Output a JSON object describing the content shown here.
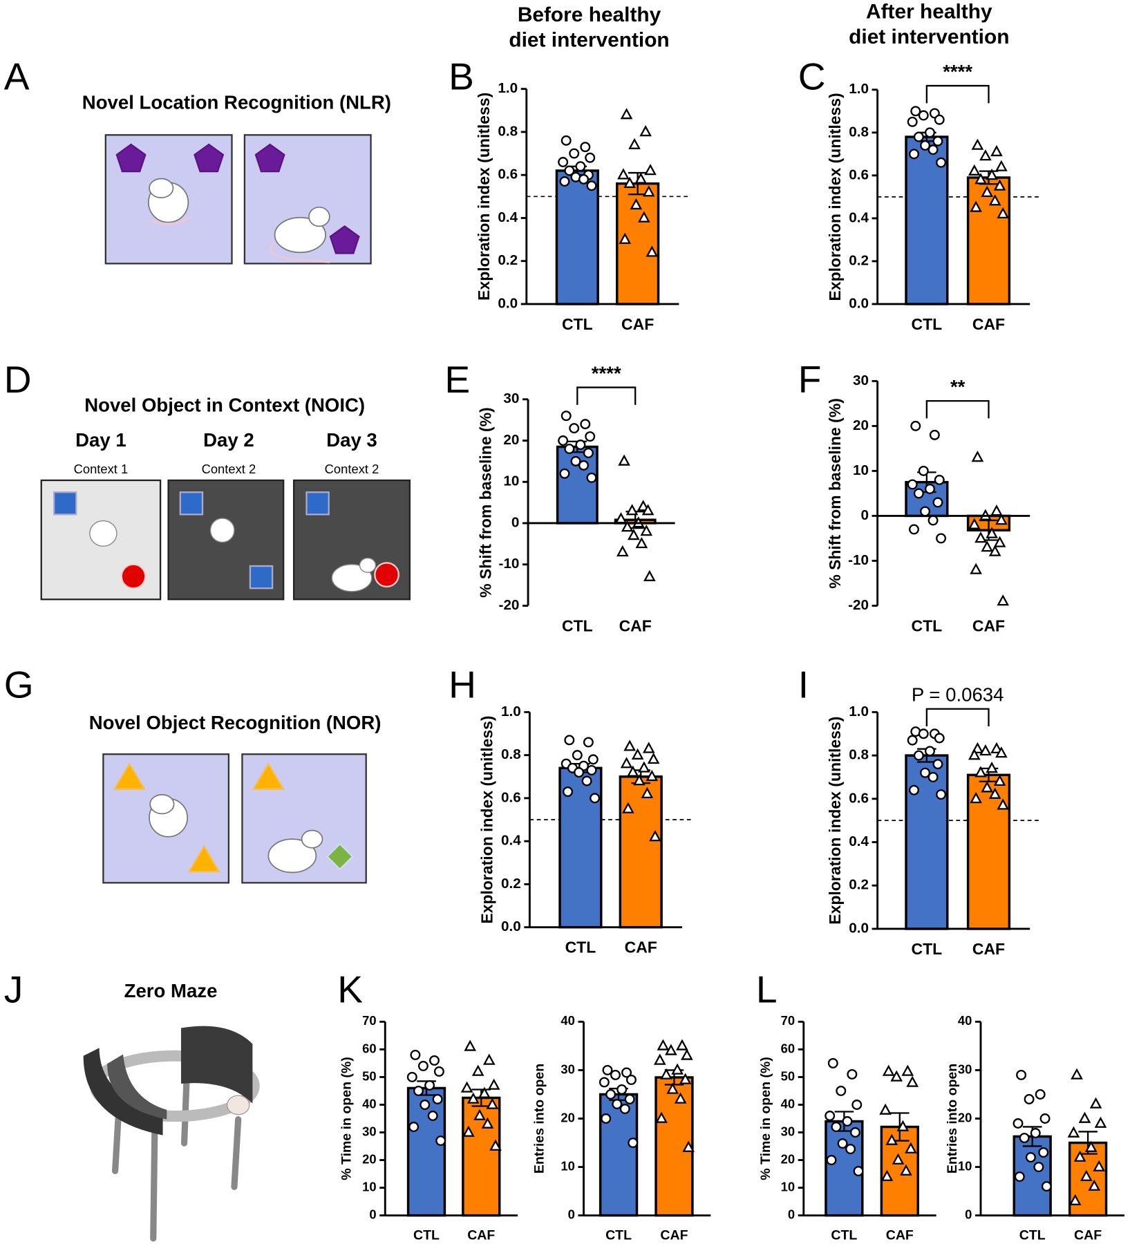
{
  "column_titles": [
    [
      "Before healthy",
      "diet intervention"
    ],
    [
      "After healthy",
      "diet intervention"
    ]
  ],
  "schematics": [
    {
      "panel": "A",
      "title": "Novel Location Recognition (NLR)"
    },
    {
      "panel": "D",
      "title": "Novel Object in Context (NOIC)",
      "days": [
        "Day 1",
        "Day 2",
        "Day 3"
      ],
      "contexts": [
        "Context 1",
        "Context 2",
        "Context 2"
      ]
    },
    {
      "panel": "G",
      "title": "Novel Object Recognition (NOR)"
    },
    {
      "panel": "J",
      "title": "Zero Maze"
    }
  ],
  "chart_data": [
    {
      "type": "bar",
      "panel": "B",
      "ylabel": "Exploration index (unitless)",
      "categories": [
        "CTL",
        "CAF"
      ],
      "values": [
        0.62,
        0.56
      ],
      "errors": [
        0.02,
        0.05
      ],
      "colors": [
        "#4472c4",
        "#ff8000"
      ],
      "markers": [
        "circle",
        "triangle"
      ],
      "points": [
        [
          0.76,
          0.73,
          0.7,
          0.68,
          0.66,
          0.64,
          0.62,
          0.6,
          0.59,
          0.58,
          0.57,
          0.55
        ],
        [
          0.88,
          0.8,
          0.74,
          0.62,
          0.6,
          0.58,
          0.56,
          0.52,
          0.46,
          0.4,
          0.3,
          0.24
        ]
      ],
      "ylim": [
        0,
        1
      ],
      "yticks": [
        {
          "value": 0,
          "label": "0.0"
        },
        {
          "value": 0.2,
          "label": "0.2"
        },
        {
          "value": 0.4,
          "label": "0.4"
        },
        {
          "value": 0.6,
          "label": "0.6"
        },
        {
          "value": 0.8,
          "label": "0.8"
        },
        {
          "value": 1,
          "label": "1.0"
        }
      ],
      "reference_line": 0.5
    },
    {
      "type": "bar",
      "panel": "C",
      "ylabel": "Exploration index (unitless)",
      "categories": [
        "CTL",
        "CAF"
      ],
      "values": [
        0.78,
        0.59
      ],
      "errors": [
        0.02,
        0.03
      ],
      "colors": [
        "#4472c4",
        "#ff8000"
      ],
      "markers": [
        "circle",
        "triangle"
      ],
      "points": [
        [
          0.9,
          0.89,
          0.88,
          0.86,
          0.85,
          0.8,
          0.78,
          0.76,
          0.74,
          0.72,
          0.7,
          0.66
        ],
        [
          0.74,
          0.71,
          0.69,
          0.64,
          0.62,
          0.6,
          0.58,
          0.55,
          0.52,
          0.48,
          0.45,
          0.42
        ]
      ],
      "ylim": [
        0,
        1
      ],
      "yticks": [
        {
          "value": 0,
          "label": "0.0"
        },
        {
          "value": 0.2,
          "label": "0.2"
        },
        {
          "value": 0.4,
          "label": "0.4"
        },
        {
          "value": 0.6,
          "label": "0.6"
        },
        {
          "value": 0.8,
          "label": "0.8"
        },
        {
          "value": 1,
          "label": "1.0"
        }
      ],
      "reference_line": 0.5,
      "annotation": "****"
    },
    {
      "type": "bar",
      "panel": "E",
      "ylabel": "% Shift from baseline (%)",
      "categories": [
        "CTL",
        "CAF"
      ],
      "values": [
        18.5,
        0.8
      ],
      "errors": [
        1.3,
        2
      ],
      "colors": [
        "#4472c4",
        "#ff8000"
      ],
      "markers": [
        "circle",
        "triangle"
      ],
      "points": [
        [
          26,
          24,
          23,
          21,
          20,
          19,
          18,
          17,
          15,
          14,
          12,
          11
        ],
        [
          15,
          4,
          3,
          3,
          1,
          0,
          -1,
          -2,
          -3,
          -5,
          -7,
          -13
        ]
      ],
      "ylim": [
        -20,
        30
      ],
      "yticks": [
        -20,
        -10,
        0,
        10,
        20,
        30
      ],
      "annotation": "****"
    },
    {
      "type": "bar",
      "panel": "F",
      "ylabel": "% Shift from baseline (%)",
      "categories": [
        "CTL",
        "CAF"
      ],
      "values": [
        7.5,
        -3.2
      ],
      "errors": [
        2.2,
        2.2
      ],
      "colors": [
        "#4472c4",
        "#ff8000"
      ],
      "markers": [
        "circle",
        "triangle"
      ],
      "points": [
        [
          20,
          18,
          10,
          8,
          7,
          6,
          5,
          3,
          1,
          -1,
          -3,
          -5
        ],
        [
          13,
          1,
          0,
          -1,
          -2,
          -4,
          -5,
          -6,
          -7,
          -8,
          -12,
          -19
        ]
      ],
      "ylim": [
        -20,
        30
      ],
      "yticks": [
        -20,
        -10,
        0,
        10,
        20,
        30
      ],
      "annotation": "**"
    },
    {
      "type": "bar",
      "panel": "H",
      "ylabel": "Exploration index (unitless)",
      "categories": [
        "CTL",
        "CAF"
      ],
      "values": [
        0.74,
        0.7
      ],
      "errors": [
        0.02,
        0.03
      ],
      "colors": [
        "#4472c4",
        "#ff8000"
      ],
      "markers": [
        "circle",
        "triangle"
      ],
      "points": [
        [
          0.87,
          0.86,
          0.8,
          0.78,
          0.76,
          0.75,
          0.74,
          0.73,
          0.72,
          0.68,
          0.63,
          0.6
        ],
        [
          0.84,
          0.83,
          0.8,
          0.78,
          0.76,
          0.74,
          0.72,
          0.7,
          0.68,
          0.62,
          0.55,
          0.42
        ]
      ],
      "ylim": [
        0,
        1
      ],
      "yticks": [
        {
          "value": 0,
          "label": "0.0"
        },
        {
          "value": 0.2,
          "label": "0.2"
        },
        {
          "value": 0.4,
          "label": "0.4"
        },
        {
          "value": 0.6,
          "label": "0.6"
        },
        {
          "value": 0.8,
          "label": "0.8"
        },
        {
          "value": 1,
          "label": "1.0"
        }
      ],
      "reference_line": 0.5
    },
    {
      "type": "bar",
      "panel": "I",
      "ylabel": "Exploration index (unitless)",
      "categories": [
        "CTL",
        "CAF"
      ],
      "values": [
        0.8,
        0.71
      ],
      "errors": [
        0.03,
        0.03
      ],
      "colors": [
        "#4472c4",
        "#ff8000"
      ],
      "markers": [
        "circle",
        "triangle"
      ],
      "points": [
        [
          0.91,
          0.9,
          0.9,
          0.88,
          0.87,
          0.82,
          0.8,
          0.76,
          0.72,
          0.7,
          0.64,
          0.62
        ],
        [
          0.83,
          0.83,
          0.82,
          0.81,
          0.8,
          0.74,
          0.72,
          0.68,
          0.65,
          0.62,
          0.6,
          0.57
        ]
      ],
      "ylim": [
        0,
        1
      ],
      "yticks": [
        {
          "value": 0,
          "label": "0.0"
        },
        {
          "value": 0.2,
          "label": "0.2"
        },
        {
          "value": 0.4,
          "label": "0.4"
        },
        {
          "value": 0.6,
          "label": "0.6"
        },
        {
          "value": 0.8,
          "label": "0.8"
        },
        {
          "value": 1,
          "label": "1.0"
        }
      ],
      "reference_line": 0.5,
      "annotation": "P = 0.0634"
    },
    {
      "type": "bar",
      "panel": "K",
      "ylabel": "% Time in open (%)",
      "categories": [
        "CTL",
        "CAF"
      ],
      "values": [
        46,
        42.5
      ],
      "errors": [
        2.5,
        3
      ],
      "colors": [
        "#4472c4",
        "#ff8000"
      ],
      "markers": [
        "circle",
        "triangle"
      ],
      "points": [
        [
          58,
          56,
          54,
          52,
          50,
          47,
          45,
          42,
          40,
          36,
          32,
          27
        ],
        [
          61,
          56,
          52,
          47,
          46,
          44,
          42,
          40,
          36,
          33,
          30,
          25
        ]
      ],
      "ylim": [
        0,
        70
      ],
      "yticks": [
        0,
        10,
        20,
        30,
        40,
        50,
        60,
        70
      ]
    },
    {
      "type": "bar",
      "ylabel": "Entries into open",
      "categories": [
        "CTL",
        "CAF"
      ],
      "values": [
        25,
        28.5
      ],
      "errors": [
        1.2,
        1.5
      ],
      "colors": [
        "#4472c4",
        "#ff8000"
      ],
      "markers": [
        "circle",
        "triangle"
      ],
      "points": [
        [
          30,
          29.5,
          29,
          28,
          27.5,
          26,
          25,
          24,
          23,
          22,
          20,
          15
        ],
        [
          35,
          35,
          34,
          33,
          32,
          30,
          29,
          28,
          26,
          24,
          20,
          14
        ]
      ],
      "ylim": [
        0,
        40
      ],
      "yticks": [
        0,
        10,
        20,
        30,
        40
      ]
    },
    {
      "type": "bar",
      "panel": "L",
      "ylabel": "% Time in open (%)",
      "categories": [
        "CTL",
        "CAF"
      ],
      "values": [
        34,
        32
      ],
      "errors": [
        3.5,
        5
      ],
      "colors": [
        "#4472c4",
        "#ff8000"
      ],
      "markers": [
        "circle",
        "triangle"
      ],
      "points": [
        [
          55,
          51,
          45,
          40,
          36,
          34,
          32,
          30,
          26,
          24,
          20,
          16
        ],
        [
          52,
          52,
          50,
          48,
          38,
          32,
          27,
          24,
          20,
          16,
          14
        ]
      ],
      "ylim": [
        0,
        70
      ],
      "yticks": [
        0,
        10,
        20,
        30,
        40,
        50,
        60,
        70
      ]
    },
    {
      "type": "bar",
      "ylabel": "Entries into open",
      "categories": [
        "CTL",
        "CAF"
      ],
      "values": [
        16.3,
        15
      ],
      "errors": [
        2,
        2.3
      ],
      "colors": [
        "#4472c4",
        "#ff8000"
      ],
      "markers": [
        "circle",
        "triangle"
      ],
      "points": [
        [
          29,
          25,
          24,
          20,
          19,
          17,
          16,
          13,
          12,
          10,
          8,
          6
        ],
        [
          29,
          23,
          20,
          19,
          17,
          14,
          12,
          10,
          8,
          6,
          3
        ]
      ],
      "ylim": [
        0,
        40
      ],
      "yticks": [
        0,
        10,
        20,
        30,
        40
      ]
    }
  ]
}
